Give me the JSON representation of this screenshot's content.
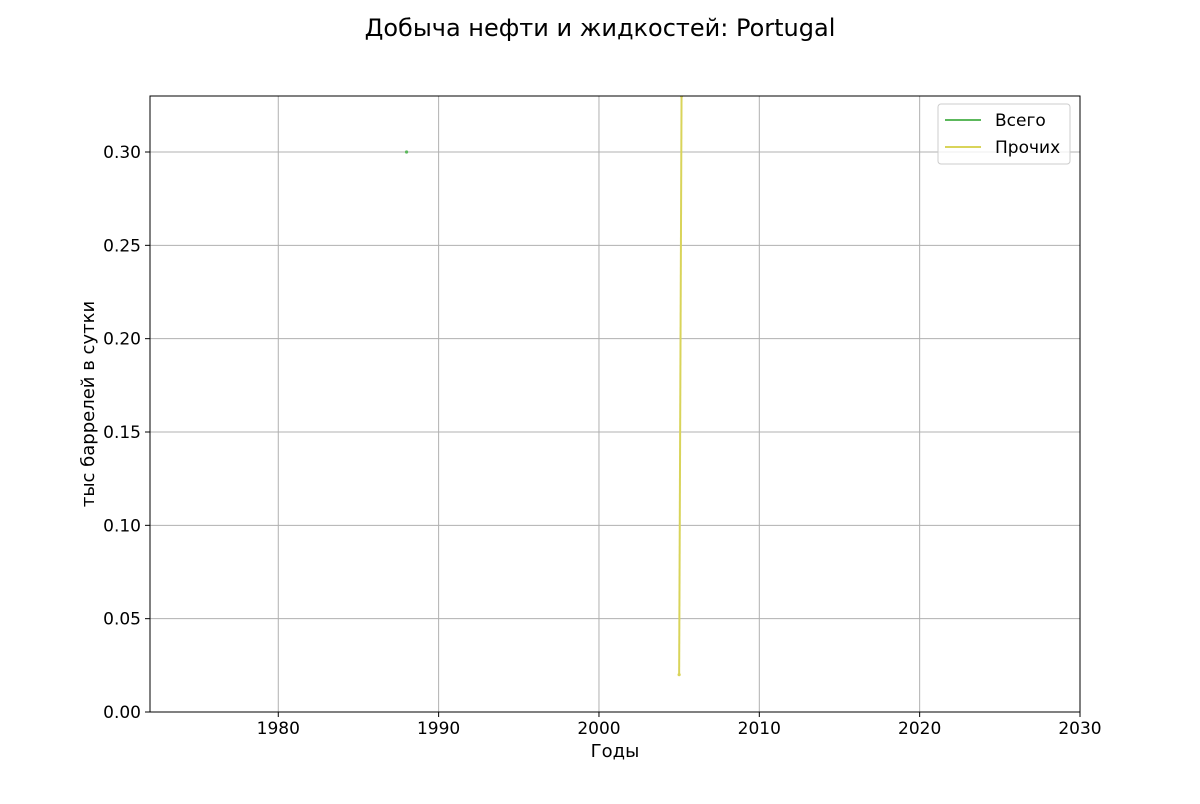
{
  "chart_data": {
    "type": "line",
    "title": "Добыча нефти и жидкостей: Portugal",
    "xlabel": "Годы",
    "ylabel": "тыс баррелей в сутки",
    "xlim": [
      1972,
      2030
    ],
    "ylim": [
      0,
      0.33
    ],
    "x_ticks": [
      1980,
      1990,
      2000,
      2010,
      2020,
      2030
    ],
    "x_tick_labels": [
      "1980",
      "1990",
      "2000",
      "2010",
      "2020",
      "2030"
    ],
    "y_ticks": [
      0,
      0.05,
      0.1,
      0.15,
      0.2,
      0.25,
      0.3
    ],
    "y_tick_labels": [
      "0.00",
      "0.05",
      "0.10",
      "0.15",
      "0.20",
      "0.25",
      "0.30"
    ],
    "grid": true,
    "legend_position": "top-right",
    "series": [
      {
        "name": "Всего",
        "color": "#5cb85c",
        "points": [
          [
            1988,
            0.3
          ]
        ]
      },
      {
        "name": "Прочих",
        "color": "#d9d45a",
        "points": [
          [
            2005,
            0.02
          ],
          [
            2005.15,
            0.33
          ]
        ]
      }
    ]
  }
}
